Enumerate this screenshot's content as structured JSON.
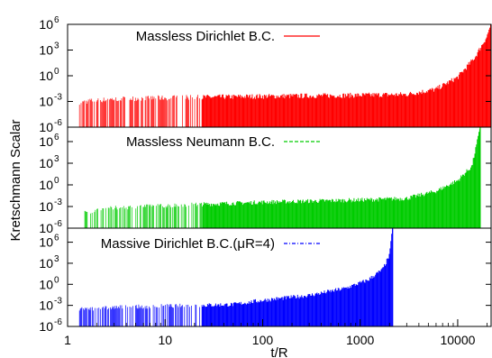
{
  "chart_data": {
    "type": "line",
    "xlabel": "t/R",
    "ylabel": "Kretschmann Scalar",
    "xscale": "log",
    "yscale": "log",
    "xlim": [
      1,
      22000
    ],
    "x_ticks": [
      {
        "value": 1,
        "label": "1"
      },
      {
        "value": 10,
        "label": "10"
      },
      {
        "value": 100,
        "label": "100"
      },
      {
        "value": 1000,
        "label": "1000"
      },
      {
        "value": 10000,
        "label": "10000"
      }
    ],
    "panels": [
      {
        "ylim": [
          1e-06,
          1000000.0
        ],
        "y_ticks": [
          {
            "value": 1e-06,
            "base": "10",
            "exp": "-6"
          },
          {
            "value": 0.001,
            "base": "10",
            "exp": "-3"
          },
          {
            "value": 1,
            "base": "10",
            "exp": "0"
          },
          {
            "value": 1000.0,
            "base": "10",
            "exp": "3"
          },
          {
            "value": 1000000.0,
            "base": "10",
            "exp": "6"
          }
        ],
        "series": [
          {
            "name": "Massless Dirichlet B.C.",
            "color": "#ff0000",
            "line_style": "solid",
            "envelope": [
              [
                1.3,
                0.0004
              ],
              [
                1.6,
                0.0008
              ],
              [
                3,
                0.0015
              ],
              [
                10,
                0.002
              ],
              [
                100,
                0.003
              ],
              [
                1000,
                0.004
              ],
              [
                3000,
                0.005
              ],
              [
                6000,
                0.02
              ],
              [
                10000,
                0.5
              ],
              [
                15000,
                100
              ],
              [
                20000,
                30000
              ],
              [
                22000,
                1000000
              ]
            ]
          }
        ]
      },
      {
        "ylim": [
          1e-06,
          100000000.0
        ],
        "y_ticks": [
          {
            "value": 1e-06,
            "base": "10",
            "exp": "-6"
          },
          {
            "value": 0.001,
            "base": "10",
            "exp": "-3"
          },
          {
            "value": 1,
            "base": "10",
            "exp": "0"
          },
          {
            "value": 1000.0,
            "base": "10",
            "exp": "3"
          },
          {
            "value": 1000000.0,
            "base": "10",
            "exp": "6"
          }
        ],
        "series": [
          {
            "name": "Massless Neumann B.C.",
            "color": "#00cc00",
            "line_style": "dashed",
            "envelope": [
              [
                1.5,
                0.0001
              ],
              [
                3,
                0.0005
              ],
              [
                10,
                0.001
              ],
              [
                100,
                0.003
              ],
              [
                1000,
                0.006
              ],
              [
                3000,
                0.01
              ],
              [
                6000,
                0.1
              ],
              [
                10000,
                3
              ],
              [
                14000,
                300
              ],
              [
                16500,
                10000000
              ],
              [
                17000,
                100000000
              ]
            ]
          }
        ]
      },
      {
        "ylim": [
          1e-06,
          100000000.0
        ],
        "y_ticks": [
          {
            "value": 1e-06,
            "base": "10",
            "exp": "-6"
          },
          {
            "value": 0.001,
            "base": "10",
            "exp": "-3"
          },
          {
            "value": 1,
            "base": "10",
            "exp": "0"
          },
          {
            "value": 1000.0,
            "base": "10",
            "exp": "3"
          },
          {
            "value": 1000000.0,
            "base": "10",
            "exp": "6"
          }
        ],
        "series": [
          {
            "name": "Massive Dirichlet B.C.(μR=4)",
            "color": "#0000ff",
            "line_style": "dash-dot",
            "envelope": [
              [
                1.3,
                0.0002
              ],
              [
                3,
                0.0004
              ],
              [
                10,
                0.0006
              ],
              [
                50,
                0.001
              ],
              [
                100,
                0.004
              ],
              [
                300,
                0.02
              ],
              [
                700,
                0.2
              ],
              [
                1200,
                3
              ],
              [
                1700,
                100
              ],
              [
                2000,
                10000
              ],
              [
                2150,
                100000000
              ]
            ]
          }
        ]
      }
    ]
  }
}
